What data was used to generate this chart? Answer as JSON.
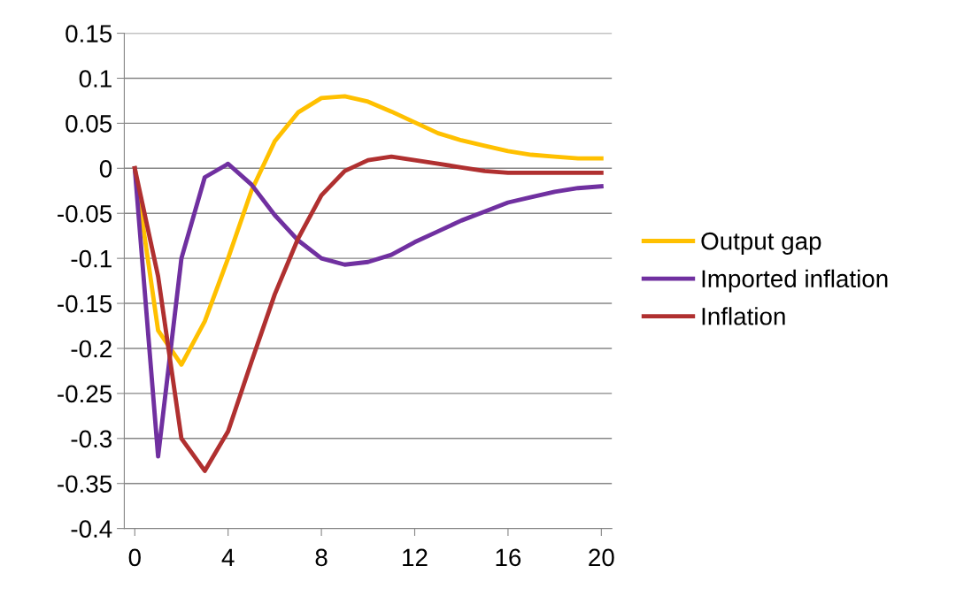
{
  "chart_data": {
    "type": "line",
    "x": [
      0,
      1,
      2,
      3,
      4,
      5,
      6,
      7,
      8,
      9,
      10,
      11,
      12,
      13,
      14,
      15,
      16,
      17,
      18,
      19,
      20
    ],
    "series": [
      {
        "name": "Output gap",
        "color": "#ffc000",
        "values": [
          0,
          -0.18,
          -0.218,
          -0.17,
          -0.1,
          -0.025,
          0.03,
          0.062,
          0.078,
          0.08,
          0.074,
          0.063,
          0.051,
          0.039,
          0.031,
          0.025,
          0.019,
          0.015,
          0.013,
          0.011,
          0.011
        ]
      },
      {
        "name": "Imported inflation",
        "color": "#7030a0",
        "values": [
          0,
          -0.32,
          -0.1,
          -0.01,
          0.005,
          -0.018,
          -0.052,
          -0.08,
          -0.1,
          -0.107,
          -0.104,
          -0.096,
          -0.082,
          -0.07,
          -0.058,
          -0.048,
          -0.038,
          -0.032,
          -0.026,
          -0.022,
          -0.02
        ]
      },
      {
        "name": "Inflation",
        "color": "#b03030",
        "values": [
          0,
          -0.12,
          -0.3,
          -0.336,
          -0.292,
          -0.215,
          -0.14,
          -0.078,
          -0.03,
          -0.003,
          0.009,
          0.013,
          0.009,
          0.005,
          0.001,
          -0.003,
          -0.005,
          -0.005,
          -0.005,
          -0.005,
          -0.005
        ]
      }
    ],
    "xlim": [
      -0.45,
      20.45
    ],
    "xticks": [
      0,
      4,
      8,
      12,
      16,
      20
    ],
    "ylim": [
      -0.4,
      0.15
    ],
    "yticks": [
      -0.4,
      -0.35,
      -0.3,
      -0.25,
      -0.2,
      -0.15,
      -0.1,
      -0.05,
      0,
      0.05,
      0.1,
      0.15
    ],
    "grid": "y",
    "legend": "right",
    "marker": "none",
    "line_style": "solid"
  }
}
